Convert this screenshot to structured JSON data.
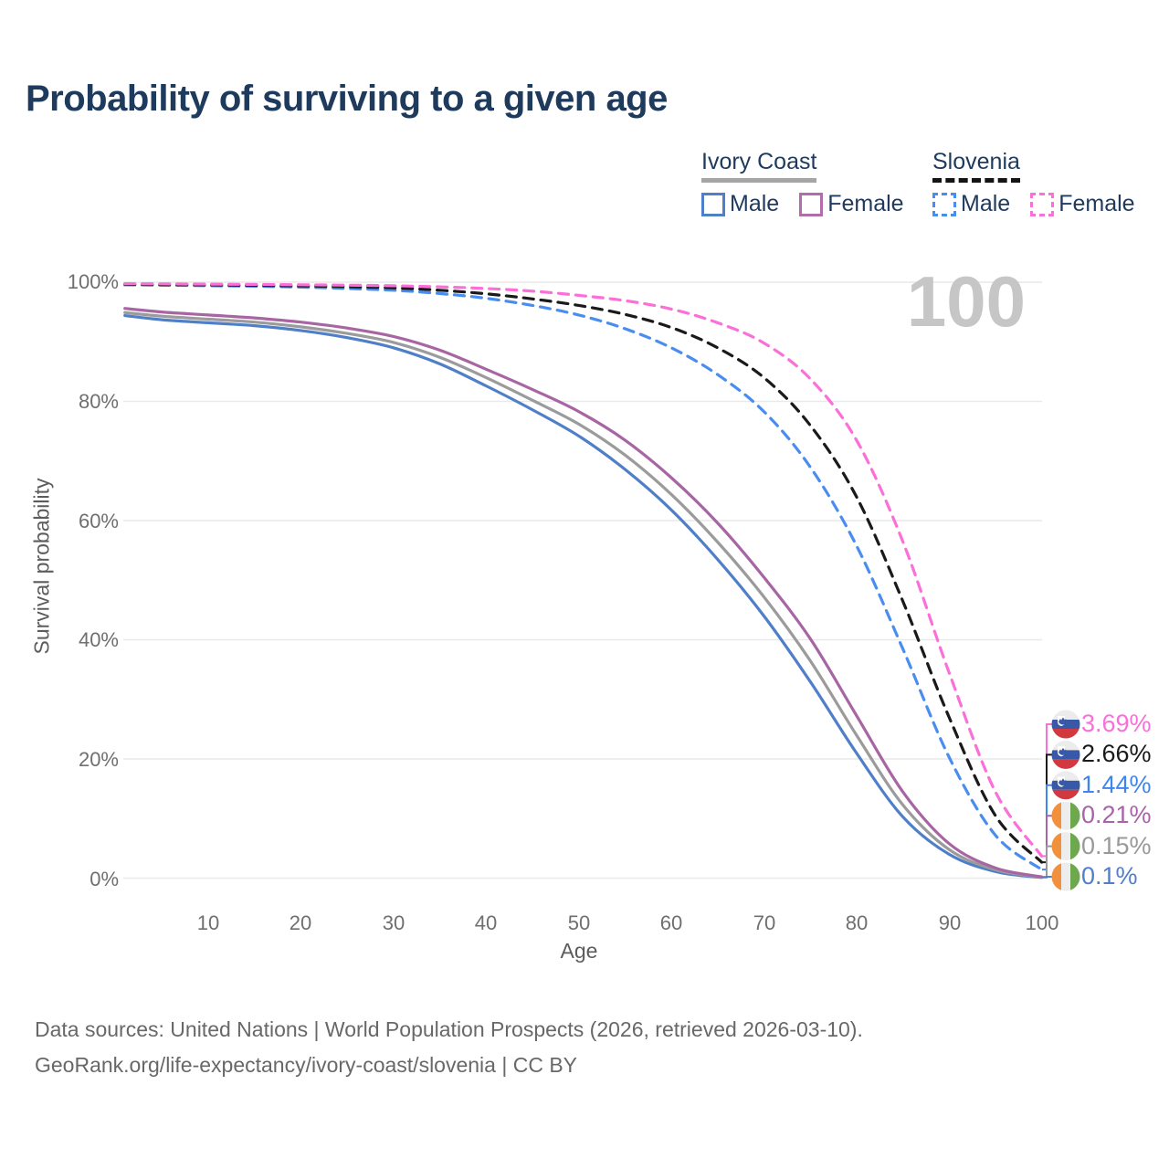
{
  "title": "Probability of surviving to a given age",
  "watermark": "100",
  "legend": {
    "groups": [
      {
        "label": "Ivory Coast",
        "line_style": "solid",
        "line_color": "#a5a5a5",
        "items": [
          {
            "label": "Male",
            "color": "#4f7fc9"
          },
          {
            "label": "Female",
            "color": "#b06cab"
          }
        ]
      },
      {
        "label": "Slovenia",
        "line_style": "dashed",
        "line_color": "#141414",
        "items": [
          {
            "label": "Male",
            "color": "#4a8df0"
          },
          {
            "label": "Female",
            "color": "#fb6fd8"
          }
        ]
      }
    ]
  },
  "y_axis": {
    "label": "Survival probability",
    "ticks": [
      "100%",
      "80%",
      "60%",
      "40%",
      "20%",
      "0%"
    ]
  },
  "x_axis": {
    "label": "Age",
    "ticks": [
      "10",
      "20",
      "30",
      "40",
      "50",
      "60",
      "70",
      "80",
      "90",
      "100"
    ]
  },
  "end_labels": [
    {
      "value": "3.69%",
      "color": "#fb6fd8",
      "flag": "slovenia",
      "end_value": 3.69
    },
    {
      "value": "2.66%",
      "color": "#1a1a1a",
      "flag": "slovenia",
      "end_value": 2.66
    },
    {
      "value": "1.44%",
      "color": "#3e86ee",
      "flag": "slovenia",
      "end_value": 1.44
    },
    {
      "value": "0.21%",
      "color": "#a963a9",
      "flag": "ivory-coast",
      "end_value": 0.21
    },
    {
      "value": "0.15%",
      "color": "#999999",
      "flag": "ivory-coast",
      "end_value": 0.15
    },
    {
      "value": "0.1%",
      "color": "#4f7fc9",
      "flag": "ivory-coast",
      "end_value": 0.1
    }
  ],
  "footer": {
    "line1": "Data sources: United Nations | World Population Prospects (2026, retrieved 2026-03-10).",
    "line2": "GeoRank.org/life-expectancy/ivory-coast/slovenia | CC BY"
  },
  "chart_data": {
    "type": "line",
    "title": "Probability of surviving to a given age",
    "xlabel": "Age",
    "ylabel": "Survival probability",
    "xlim": [
      0,
      100
    ],
    "ylim": [
      0,
      100
    ],
    "y_gridlines_pct": [
      0,
      20,
      40,
      60,
      80,
      100
    ],
    "grid": "horizontal",
    "legend_position": "top-right",
    "series": [
      {
        "name": "Ivory Coast Male",
        "style": "solid",
        "color": "#4f7fc9",
        "end_label": "0.1%",
        "points": [
          [
            1,
            94.4
          ],
          [
            5,
            93.7
          ],
          [
            10,
            93.2
          ],
          [
            15,
            92.7
          ],
          [
            20,
            91.9
          ],
          [
            25,
            90.7
          ],
          [
            30,
            89.0
          ],
          [
            35,
            86.3
          ],
          [
            40,
            82.6
          ],
          [
            45,
            78.6
          ],
          [
            50,
            74.2
          ],
          [
            55,
            68.6
          ],
          [
            60,
            61.8
          ],
          [
            65,
            53.5
          ],
          [
            70,
            44.0
          ],
          [
            75,
            33.0
          ],
          [
            80,
            21.0
          ],
          [
            85,
            10.3
          ],
          [
            90,
            4.0
          ],
          [
            95,
            1.1
          ],
          [
            100,
            0.1
          ]
        ]
      },
      {
        "name": "Ivory Coast Both sexes",
        "style": "solid",
        "color": "#9b9b9b",
        "end_label": "0.15%",
        "points": [
          [
            1,
            94.9
          ],
          [
            5,
            94.3
          ],
          [
            10,
            93.8
          ],
          [
            15,
            93.3
          ],
          [
            20,
            92.5
          ],
          [
            25,
            91.4
          ],
          [
            30,
            89.9
          ],
          [
            35,
            87.4
          ],
          [
            40,
            84.0
          ],
          [
            45,
            80.2
          ],
          [
            50,
            76.2
          ],
          [
            55,
            71.0
          ],
          [
            60,
            64.4
          ],
          [
            65,
            56.4
          ],
          [
            70,
            47.2
          ],
          [
            75,
            36.5
          ],
          [
            80,
            24.0
          ],
          [
            85,
            12.3
          ],
          [
            90,
            4.8
          ],
          [
            95,
            1.4
          ],
          [
            100,
            0.15
          ]
        ]
      },
      {
        "name": "Ivory Coast Female",
        "style": "solid",
        "color": "#a865a3",
        "end_label": "0.21%",
        "points": [
          [
            1,
            95.6
          ],
          [
            5,
            95.0
          ],
          [
            10,
            94.5
          ],
          [
            15,
            94.0
          ],
          [
            20,
            93.3
          ],
          [
            25,
            92.3
          ],
          [
            30,
            90.9
          ],
          [
            35,
            88.6
          ],
          [
            40,
            85.4
          ],
          [
            45,
            82.0
          ],
          [
            50,
            78.3
          ],
          [
            55,
            73.5
          ],
          [
            60,
            67.2
          ],
          [
            65,
            59.6
          ],
          [
            70,
            50.5
          ],
          [
            75,
            40.2
          ],
          [
            80,
            27.3
          ],
          [
            85,
            14.5
          ],
          [
            90,
            5.8
          ],
          [
            95,
            1.7
          ],
          [
            100,
            0.21
          ]
        ]
      },
      {
        "name": "Slovenia Male",
        "style": "dashed",
        "color": "#4a8df0",
        "end_label": "1.44%",
        "points": [
          [
            1,
            99.55
          ],
          [
            5,
            99.5
          ],
          [
            10,
            99.42
          ],
          [
            15,
            99.32
          ],
          [
            20,
            99.18
          ],
          [
            25,
            98.95
          ],
          [
            30,
            98.65
          ],
          [
            35,
            98.1
          ],
          [
            40,
            97.3
          ],
          [
            45,
            96.1
          ],
          [
            50,
            94.5
          ],
          [
            55,
            92.2
          ],
          [
            60,
            89.0
          ],
          [
            65,
            84.5
          ],
          [
            70,
            78.3
          ],
          [
            75,
            69.0
          ],
          [
            80,
            55.8
          ],
          [
            85,
            38.5
          ],
          [
            90,
            20.3
          ],
          [
            95,
            7.2
          ],
          [
            100,
            1.44
          ]
        ]
      },
      {
        "name": "Slovenia Both sexes",
        "style": "dashed",
        "color": "#1a1a1a",
        "end_label": "2.66%",
        "points": [
          [
            1,
            99.65
          ],
          [
            5,
            99.6
          ],
          [
            10,
            99.55
          ],
          [
            15,
            99.48
          ],
          [
            20,
            99.38
          ],
          [
            25,
            99.25
          ],
          [
            30,
            99.05
          ],
          [
            35,
            98.65
          ],
          [
            40,
            98.05
          ],
          [
            45,
            97.2
          ],
          [
            50,
            96.1
          ],
          [
            55,
            94.6
          ],
          [
            60,
            92.4
          ],
          [
            65,
            89.0
          ],
          [
            70,
            84.0
          ],
          [
            75,
            76.0
          ],
          [
            80,
            64.0
          ],
          [
            85,
            46.5
          ],
          [
            90,
            27.0
          ],
          [
            95,
            10.5
          ],
          [
            100,
            2.66
          ]
        ]
      },
      {
        "name": "Slovenia Female",
        "style": "dashed",
        "color": "#fb6fd8",
        "end_label": "3.69%",
        "points": [
          [
            1,
            99.75
          ],
          [
            5,
            99.72
          ],
          [
            10,
            99.68
          ],
          [
            15,
            99.63
          ],
          [
            20,
            99.57
          ],
          [
            25,
            99.5
          ],
          [
            30,
            99.4
          ],
          [
            35,
            99.22
          ],
          [
            40,
            98.95
          ],
          [
            45,
            98.5
          ],
          [
            50,
            97.8
          ],
          [
            55,
            96.9
          ],
          [
            60,
            95.5
          ],
          [
            65,
            93.2
          ],
          [
            70,
            89.8
          ],
          [
            75,
            83.8
          ],
          [
            80,
            73.5
          ],
          [
            85,
            56.5
          ],
          [
            90,
            34.5
          ],
          [
            95,
            14.5
          ],
          [
            100,
            3.69
          ]
        ]
      }
    ]
  }
}
